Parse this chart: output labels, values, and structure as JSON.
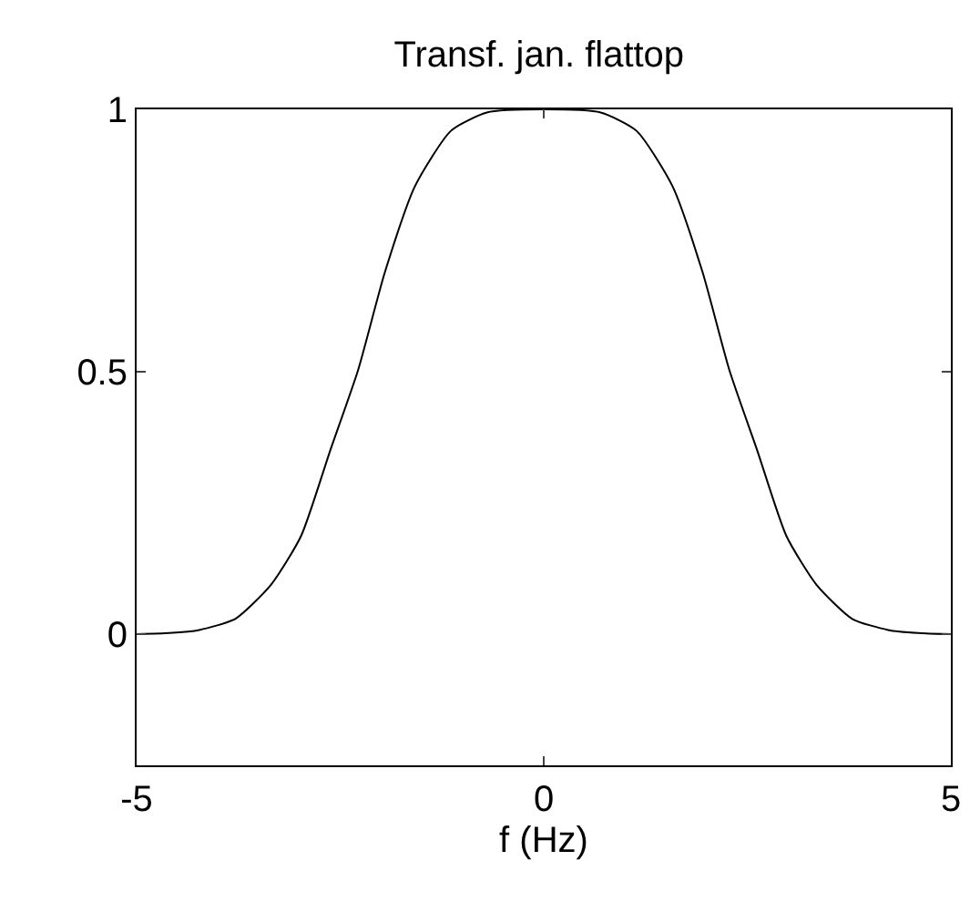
{
  "chart_data": {
    "type": "line",
    "title": "Transf. jan. flattop",
    "xlabel": "f (Hz)",
    "x": [
      -5,
      -4.6,
      -4.23,
      -3.79,
      -3.35,
      -2.98,
      -2.62,
      -2.28,
      -1.95,
      -1.58,
      -1.14,
      -0.7,
      0,
      0.7,
      1.14,
      1.58,
      1.95,
      2.28,
      2.62,
      2.98,
      3.35,
      3.79,
      4.23,
      4.6,
      5
    ],
    "series": [
      {
        "color": "#000000",
        "values": [
          0,
          0.002,
          0.008,
          0.029,
          0.094,
          0.187,
          0.351,
          0.503,
          0.69,
          0.854,
          0.959,
          0.994,
          1,
          0.994,
          0.959,
          0.854,
          0.69,
          0.503,
          0.351,
          0.187,
          0.094,
          0.029,
          0.008,
          0.002,
          0
        ]
      }
    ],
    "xlim": [
      -5,
      5
    ],
    "xticks": [
      -5,
      0,
      5
    ],
    "ylim": [
      -0.25,
      1
    ],
    "yticks": [
      0,
      0.5,
      1
    ]
  }
}
